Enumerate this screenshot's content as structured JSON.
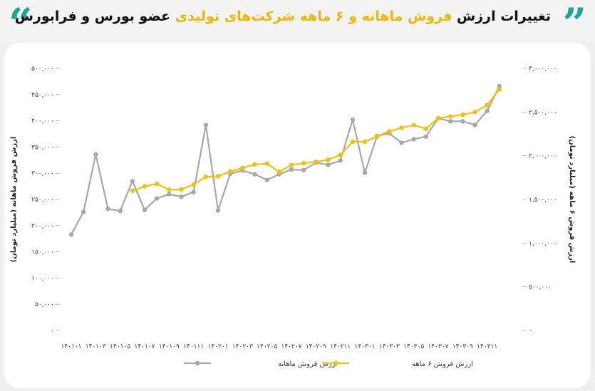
{
  "header": {
    "title_part1": "تغییرات ارزش",
    "title_highlight": "فروش ماهانه و ۶ ماهه شرکت‌های تولیدی",
    "title_part2": "عضو بورس و فرابورس",
    "quote_left": "“",
    "quote_right": "”"
  },
  "colors": {
    "accent_teal": "#1aa896",
    "highlight_yellow": "#f2b705",
    "series_monthly": "#a8a8a8",
    "series_six_month": "#f2c10a"
  },
  "chart_data": {
    "type": "line",
    "ylabel_left": "ارزش فروش ماهانه (میلیارد تومان)",
    "ylabel_right": "ارزش فروش ۶ ماهه (میلیارد تومان)",
    "ylim_left": [
      0,
      500000
    ],
    "ylim_right": [
      0,
      3000000
    ],
    "yticks_left": [
      "۵۰۰,۰۰۰",
      "۴۵۰,۰۰۰",
      "۴۰۰,۰۰۰",
      "۳۵۰,۰۰۰",
      "۳۰۰,۰۰۰",
      "۲۵۰,۰۰۰",
      "۲۰۰,۰۰۰",
      "۱۵۰,۰۰۰",
      "۱۰۰,۰۰۰",
      "۵۰,۰۰۰",
      "۰"
    ],
    "yticks_right": [
      "۳,۰۰۰,۰۰۰",
      "۲,۵۰۰,۰۰۰",
      "۲,۰۰۰,۰۰۰",
      "۱,۵۰۰,۰۰۰",
      "۱,۰۰۰,۰۰۰",
      "۵۰۰,۰۰۰",
      "۰"
    ],
    "xticks": [
      "۱۴۰۱۰۱",
      "۱۴۰۱۰۳",
      "۱۴۰۱۰۵",
      "۱۴۰۱۰۷",
      "۱۴۰۱۰۹",
      "۱۴۰۱۱۱",
      "۱۴۰۲۰۱",
      "۱۴۰۲۰۳",
      "۱۴۰۲۰۵",
      "۱۴۰۲۰۷",
      "۱۴۰۲۰۹",
      "۱۴۰۲۱۱",
      "۱۴۰۳۰۱",
      "۱۴۰۳۰۳",
      "۱۴۰۳۰۵",
      "۱۴۰۳۰۷",
      "۱۴۰۳۰۹",
      "۱۴۰۳۱۱"
    ],
    "n_points": 37,
    "legend_position": "bottom",
    "series": [
      {
        "name": "ارزش فروش ماهانه",
        "axis": "left",
        "values": [
          183000,
          226000,
          336000,
          232000,
          228000,
          285000,
          230000,
          252000,
          260000,
          255000,
          264000,
          392000,
          229000,
          299000,
          305000,
          298000,
          287000,
          298000,
          307000,
          306000,
          320000,
          316000,
          324000,
          402000,
          301000,
          371000,
          376000,
          358000,
          365000,
          370000,
          405000,
          399000,
          399000,
          392000,
          419000,
          466000,
          0
        ],
        "note_last_point_absent": true
      },
      {
        "name": "ارزش فروش ۶ ماهه",
        "axis": "right",
        "start_index": 5,
        "values": [
          1600000,
          1650000,
          1680000,
          1610000,
          1615000,
          1670000,
          1760000,
          1765000,
          1820000,
          1860000,
          1900000,
          1910000,
          1815000,
          1895000,
          1915000,
          1930000,
          1955000,
          2010000,
          2160000,
          2160000,
          2220000,
          2280000,
          2320000,
          2350000,
          2310000,
          2430000,
          2450000,
          2470000,
          2500000,
          2580000,
          2760000
        ]
      }
    ]
  }
}
